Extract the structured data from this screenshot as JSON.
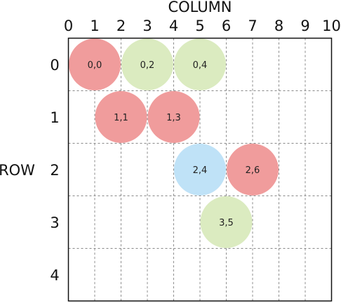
{
  "column_title": "COLUMN",
  "row_title": "ROW",
  "column_labels": [
    "0",
    "1",
    "2",
    "3",
    "4",
    "5",
    "6",
    "7",
    "8",
    "9",
    "10"
  ],
  "row_labels": [
    "0",
    "1",
    "2",
    "3",
    "4"
  ],
  "colors": {
    "red": "#f09c9c",
    "green": "#dbebc0",
    "blue": "#bfe2f7",
    "grid": "#888888",
    "frame": "#111111"
  },
  "nodes": [
    {
      "label": "0,0",
      "row": 0,
      "col": 1,
      "color": "red"
    },
    {
      "label": "0,2",
      "row": 0,
      "col": 3,
      "color": "green"
    },
    {
      "label": "0,4",
      "row": 0,
      "col": 5,
      "color": "green"
    },
    {
      "label": "1,1",
      "row": 1,
      "col": 2,
      "color": "red"
    },
    {
      "label": "1,3",
      "row": 1,
      "col": 4,
      "color": "red"
    },
    {
      "label": "2,4",
      "row": 2,
      "col": 5,
      "color": "blue"
    },
    {
      "label": "2,6",
      "row": 2,
      "col": 7,
      "color": "red"
    },
    {
      "label": "3,5",
      "row": 3,
      "col": 6,
      "color": "green"
    }
  ]
}
